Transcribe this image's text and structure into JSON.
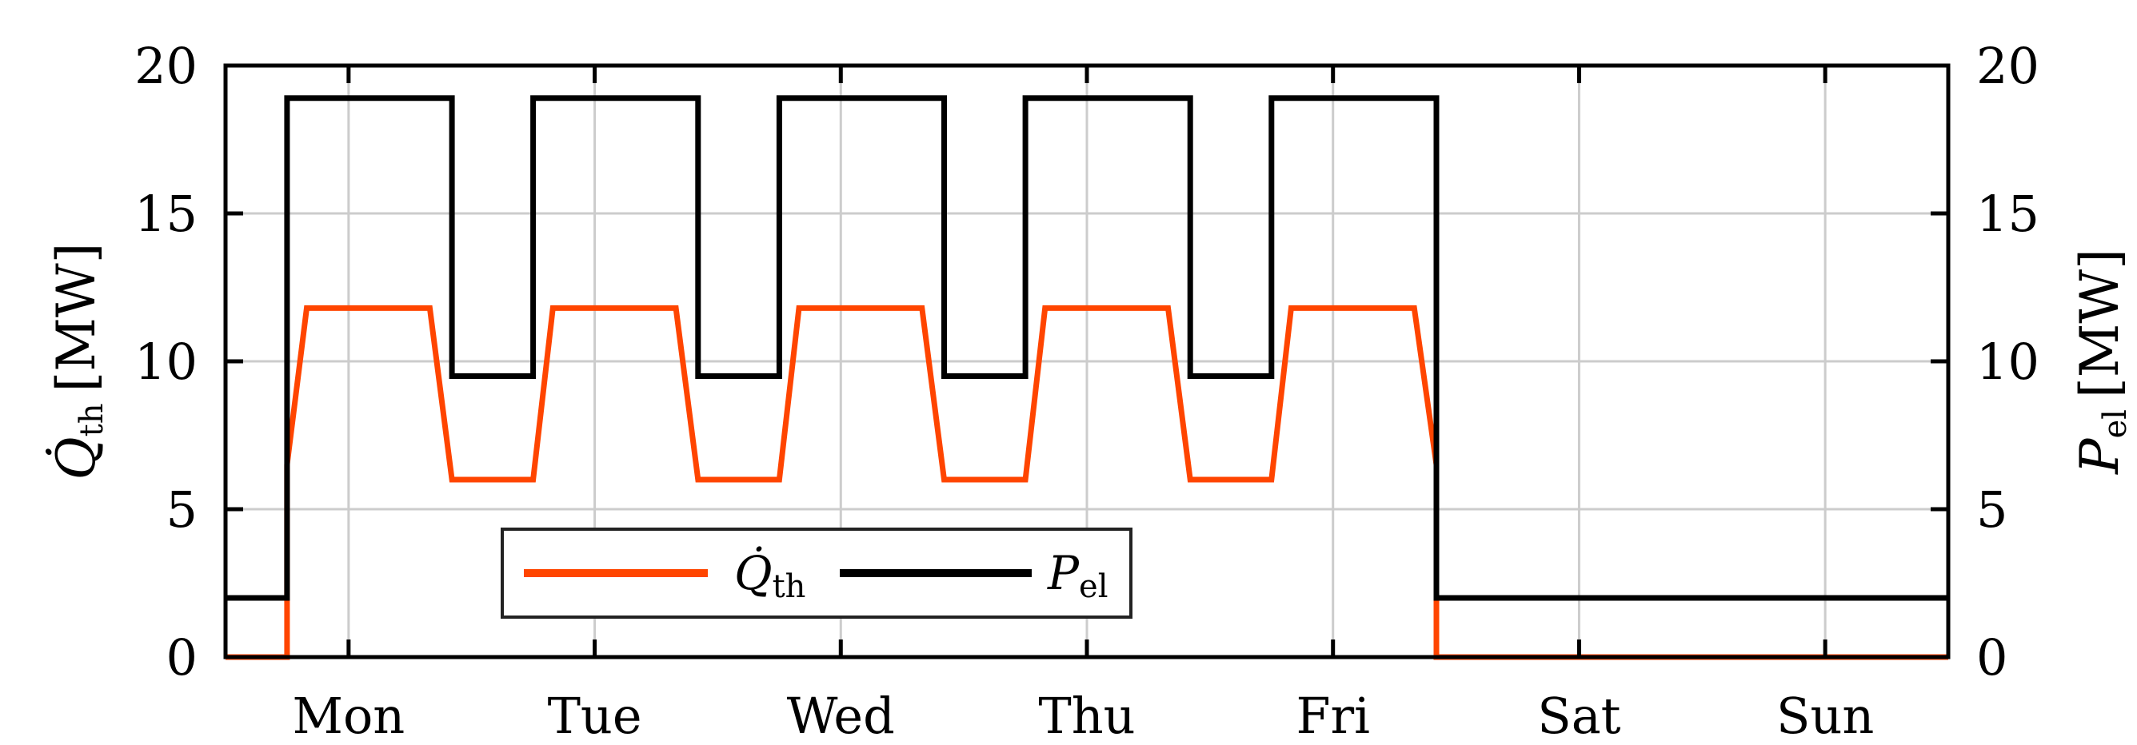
{
  "chart_data": {
    "type": "line",
    "x_categories": [
      "Mon",
      "Tue",
      "Wed",
      "Thu",
      "Fri",
      "Sat",
      "Sun"
    ],
    "x_range_days": [
      -0.5,
      6.5
    ],
    "y_left": {
      "label_main": "Q̇",
      "label_sub": "th",
      "label_unit": "[MW]",
      "range": [
        0,
        20
      ],
      "ticks": [
        0,
        5,
        10,
        15,
        20
      ]
    },
    "y_right": {
      "label_main": "P",
      "label_sub": "el",
      "label_unit": "[MW]",
      "range": [
        0,
        20
      ],
      "ticks": [
        0,
        5,
        10,
        15,
        20
      ]
    },
    "grid": true,
    "legend": {
      "position": "lower-left",
      "items": [
        {
          "series": 0,
          "main": "Q̇",
          "sub": "th"
        },
        {
          "series": 1,
          "main": "P",
          "sub": "el"
        }
      ]
    },
    "series": [
      {
        "color": "#ff4500",
        "axis": "left",
        "points": [
          [
            -0.5,
            0
          ],
          [
            -0.25,
            0
          ],
          [
            -0.25,
            6.5
          ],
          [
            -0.17,
            11.8
          ],
          [
            0.33,
            11.8
          ],
          [
            0.42,
            6
          ],
          [
            0.75,
            6
          ],
          [
            0.83,
            11.8
          ],
          [
            1.33,
            11.8
          ],
          [
            1.42,
            6
          ],
          [
            1.75,
            6
          ],
          [
            1.83,
            11.8
          ],
          [
            2.33,
            11.8
          ],
          [
            2.42,
            6
          ],
          [
            2.75,
            6
          ],
          [
            2.83,
            11.8
          ],
          [
            3.33,
            11.8
          ],
          [
            3.42,
            6
          ],
          [
            3.75,
            6
          ],
          [
            3.83,
            11.8
          ],
          [
            4.33,
            11.8
          ],
          [
            4.42,
            6.5
          ],
          [
            4.42,
            0
          ],
          [
            6.5,
            0
          ]
        ]
      },
      {
        "color": "#000000",
        "axis": "right",
        "points": [
          [
            -0.5,
            2
          ],
          [
            -0.25,
            2
          ],
          [
            -0.25,
            18.9
          ],
          [
            0.42,
            18.9
          ],
          [
            0.42,
            9.5
          ],
          [
            0.75,
            9.5
          ],
          [
            0.75,
            18.9
          ],
          [
            1.42,
            18.9
          ],
          [
            1.42,
            9.5
          ],
          [
            1.75,
            9.5
          ],
          [
            1.75,
            18.9
          ],
          [
            2.42,
            18.9
          ],
          [
            2.42,
            9.5
          ],
          [
            2.75,
            9.5
          ],
          [
            2.75,
            18.9
          ],
          [
            3.42,
            18.9
          ],
          [
            3.42,
            9.5
          ],
          [
            3.75,
            9.5
          ],
          [
            3.75,
            18.9
          ],
          [
            4.42,
            18.9
          ],
          [
            4.42,
            2
          ],
          [
            6.5,
            2
          ]
        ]
      }
    ]
  }
}
